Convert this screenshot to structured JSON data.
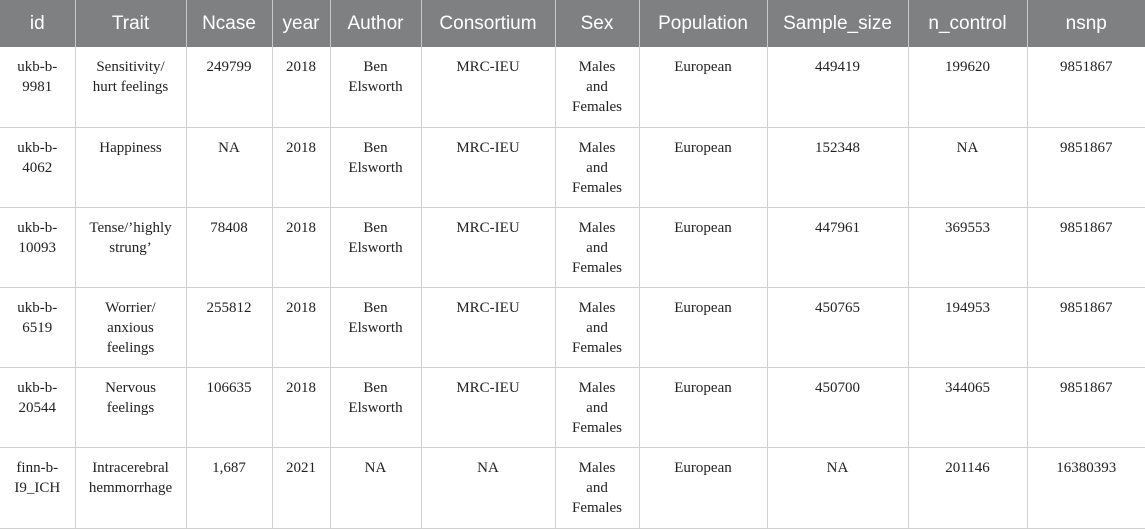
{
  "table": {
    "headers": [
      "id",
      "Trait",
      "Ncase",
      "year",
      "Author",
      "Consortium",
      "Sex",
      "Population",
      "Sample_size",
      "n_control",
      "nsnp"
    ],
    "rows": [
      {
        "id": [
          "ukb-b-",
          "9981"
        ],
        "trait": [
          "Sensitivity/",
          "hurt feelings"
        ],
        "ncase": "249799",
        "year": "2018",
        "author": [
          "Ben",
          "Elsworth"
        ],
        "consortium": "MRC-IEU",
        "sex": [
          "Males",
          "and",
          "Females"
        ],
        "population": "European",
        "sample_size": "449419",
        "n_control": "199620",
        "nsnp": "9851867"
      },
      {
        "id": [
          "ukb-b-",
          "4062"
        ],
        "trait": [
          "Happiness"
        ],
        "ncase": "NA",
        "year": "2018",
        "author": [
          "Ben",
          "Elsworth"
        ],
        "consortium": "MRC-IEU",
        "sex": [
          "Males",
          "and",
          "Females"
        ],
        "population": "European",
        "sample_size": "152348",
        "n_control": "NA",
        "nsnp": "9851867"
      },
      {
        "id": [
          "ukb-b-",
          "10093"
        ],
        "trait": [
          "Tense/’highly",
          "strung’"
        ],
        "ncase": "78408",
        "year": "2018",
        "author": [
          "Ben",
          "Elsworth"
        ],
        "consortium": "MRC-IEU",
        "sex": [
          "Males",
          "and",
          "Females"
        ],
        "population": "European",
        "sample_size": "447961",
        "n_control": "369553",
        "nsnp": "9851867"
      },
      {
        "id": [
          "ukb-b-",
          "6519"
        ],
        "trait": [
          "Worrier/",
          "anxious",
          "feelings"
        ],
        "ncase": "255812",
        "year": "2018",
        "author": [
          "Ben",
          "Elsworth"
        ],
        "consortium": "MRC-IEU",
        "sex": [
          "Males",
          "and",
          "Females"
        ],
        "population": "European",
        "sample_size": "450765",
        "n_control": "194953",
        "nsnp": "9851867"
      },
      {
        "id": [
          "ukb-b-",
          "20544"
        ],
        "trait": [
          "Nervous",
          "feelings"
        ],
        "ncase": "106635",
        "year": "2018",
        "author": [
          "Ben",
          "Elsworth"
        ],
        "consortium": "MRC-IEU",
        "sex": [
          "Males",
          "and",
          "Females"
        ],
        "population": "European",
        "sample_size": "450700",
        "n_control": "344065",
        "nsnp": "9851867"
      },
      {
        "id": [
          "finn-b-",
          "I9_ICH"
        ],
        "trait": [
          "Intracerebral",
          "hemmorrhage"
        ],
        "ncase": "1,687",
        "year": "2021",
        "author": [
          "NA"
        ],
        "consortium": "NA",
        "sex": [
          "Males",
          "and",
          "Females"
        ],
        "population": "European",
        "sample_size": "NA",
        "n_control": "201146",
        "nsnp": "16380393"
      }
    ]
  }
}
